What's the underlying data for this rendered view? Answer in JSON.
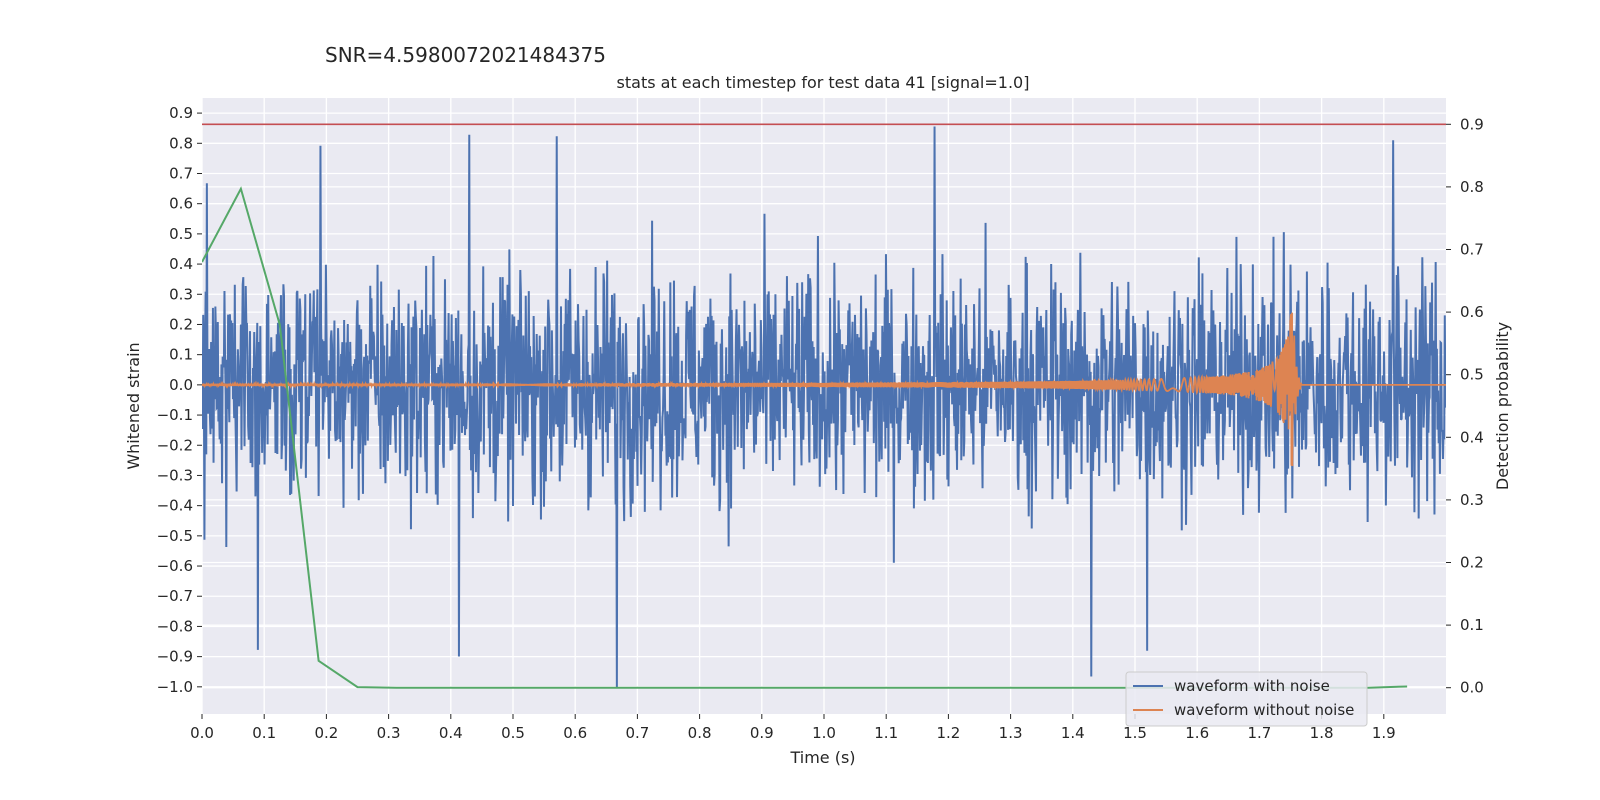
{
  "chart_data": {
    "type": "line",
    "suptitle": "SNR=4.5980072021484375",
    "title": "stats at each timestep for test data 41 [signal=1.0]",
    "xlabel": "Time (s)",
    "ylabel": "Whitened strain",
    "ylabel_right": "Detection probability",
    "xlim": [
      0.0,
      2.0
    ],
    "ylim": [
      -1.09,
      0.95
    ],
    "ylim_right": [
      -0.042,
      0.942
    ],
    "x_ticks": [
      0.0,
      0.1,
      0.2,
      0.3,
      0.4,
      0.5,
      0.6,
      0.7,
      0.8,
      0.9,
      1.0,
      1.1,
      1.2,
      1.3,
      1.4,
      1.5,
      1.6,
      1.7,
      1.8,
      1.9
    ],
    "x_tick_labels": [
      "0.0",
      "0.1",
      "0.2",
      "0.3",
      "0.4",
      "0.5",
      "0.6",
      "0.7",
      "0.8",
      "0.9",
      "1.0",
      "1.1",
      "1.2",
      "1.3",
      "1.4",
      "1.5",
      "1.6",
      "1.7",
      "1.8",
      "1.9"
    ],
    "y_ticks": [
      -1.0,
      -0.9,
      -0.8,
      -0.7,
      -0.6,
      -0.5,
      -0.4,
      -0.3,
      -0.2,
      -0.1,
      0.0,
      0.1,
      0.2,
      0.3,
      0.4,
      0.5,
      0.6,
      0.7,
      0.8,
      0.9
    ],
    "y_tick_labels": [
      "−1.0",
      "−0.9",
      "−0.8",
      "−0.7",
      "−0.6",
      "−0.5",
      "−0.4",
      "−0.3",
      "−0.2",
      "−0.1",
      "0.0",
      "0.1",
      "0.2",
      "0.3",
      "0.4",
      "0.5",
      "0.6",
      "0.7",
      "0.8",
      "0.9"
    ],
    "y_ticks_right": [
      0.0,
      0.1,
      0.2,
      0.3,
      0.4,
      0.5,
      0.6,
      0.7,
      0.8,
      0.9
    ],
    "y_tick_labels_right": [
      "0.0",
      "0.1",
      "0.2",
      "0.3",
      "0.4",
      "0.5",
      "0.6",
      "0.7",
      "0.8",
      "0.9"
    ],
    "grid": true,
    "legend_position": "lower-right",
    "series": [
      {
        "name": "waveform with noise",
        "color": "#4c72b0",
        "axis": "left",
        "style": "dense noise",
        "spikes": [
          [
            0.008,
            0.67
          ],
          [
            0.09,
            -0.88
          ],
          [
            0.19,
            0.79
          ],
          [
            0.413,
            -0.9
          ],
          [
            0.43,
            0.83
          ],
          [
            0.57,
            0.82
          ],
          [
            0.667,
            -1.0
          ],
          [
            1.178,
            0.85
          ],
          [
            1.43,
            -0.96
          ],
          [
            1.52,
            -0.87
          ],
          [
            1.915,
            0.81
          ]
        ]
      },
      {
        "name": "waveform without noise",
        "color": "#dd8452",
        "axis": "left",
        "style": "chirp",
        "merger_time": 1.755,
        "peak_amplitude": 0.3
      },
      {
        "color": "#55a868",
        "axis": "right",
        "x": [
          0.0,
          0.0625,
          0.125,
          0.1875,
          0.25,
          0.3125,
          0.375,
          0.4375,
          0.5,
          0.5625,
          0.625,
          0.6875,
          0.75,
          0.8125,
          0.875,
          0.9375,
          1.0,
          1.0625,
          1.125,
          1.1875,
          1.25,
          1.3125,
          1.375,
          1.4375,
          1.5,
          1.5625,
          1.625,
          1.6875,
          1.75,
          1.8125,
          1.875,
          1.9375
        ],
        "values": [
          0.68,
          0.797,
          0.58,
          0.043,
          0.001,
          0.0,
          0.0,
          0.0,
          0.0,
          0.0,
          0.0,
          0.0,
          0.0,
          0.0,
          0.0,
          0.0,
          0.0,
          0.0,
          0.0,
          0.0,
          0.0,
          0.0,
          0.0,
          0.0,
          0.0,
          0.0,
          0.0,
          0.0,
          0.0,
          0.0,
          0.0,
          0.002
        ]
      }
    ],
    "threshold": {
      "axis": "right",
      "value": 0.9,
      "color": "#c44e52"
    }
  }
}
